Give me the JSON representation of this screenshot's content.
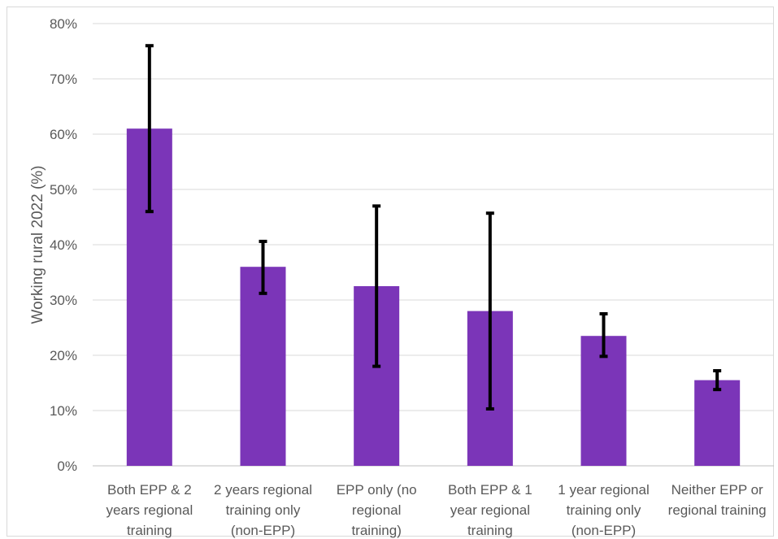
{
  "chart_data": {
    "type": "bar",
    "ylabel": "Working rural 2022 (%)",
    "ylim": [
      0,
      80
    ],
    "yticks": [
      0,
      10,
      20,
      30,
      40,
      50,
      60,
      70,
      80
    ],
    "ytick_labels": [
      "0%",
      "10%",
      "20%",
      "30%",
      "40%",
      "50%",
      "60%",
      "70%",
      "80%"
    ],
    "grid": true,
    "bar_color": "#7b35b8",
    "errorbar_color": "#000000",
    "categories": [
      [
        "Both EPP & 2",
        "years regional",
        "training"
      ],
      [
        "2 years regional",
        "training only",
        "(non-EPP)"
      ],
      [
        "EPP only (no",
        "regional",
        "training)"
      ],
      [
        "Both EPP & 1",
        "year regional",
        "training"
      ],
      [
        "1 year regional",
        "training only",
        "(non-EPP)"
      ],
      [
        "Neither EPP or",
        "regional training"
      ]
    ],
    "values": [
      61,
      36,
      32.5,
      28,
      23.5,
      15.5
    ],
    "error_low": [
      46,
      31.2,
      18,
      10.3,
      19.8,
      13.8
    ],
    "error_high": [
      76,
      40.6,
      47,
      45.7,
      27.5,
      17.2
    ]
  }
}
